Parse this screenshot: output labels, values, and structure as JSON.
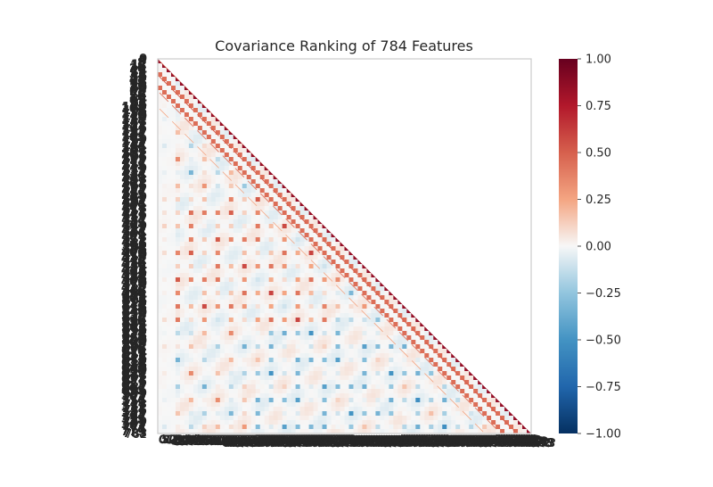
{
  "chart_data": {
    "type": "heatmap",
    "title": "Covariance Ranking of 784 Features",
    "n_features": 784,
    "matrix_shape": "lower-triangular",
    "colormap": "RdBu_r",
    "value_range": [
      -1.0,
      1.0
    ],
    "colorbar": {
      "placement": "right",
      "ticks": [
        "1.00",
        "0.75",
        "0.50",
        "0.25",
        "0.00",
        "−0.25",
        "−0.50",
        "−0.75",
        "−1.00"
      ],
      "tick_values": [
        1.0,
        0.75,
        0.5,
        0.25,
        0.0,
        -0.25,
        -0.5,
        -0.75,
        -1.0
      ]
    },
    "y_last_tick_label": "782",
    "axis_tick_labels_note_overlapping": true,
    "colors": {
      "max": "#67001f",
      "high": "#b2182b",
      "mid_high": "#f4a582",
      "zero": "#f7f7f7",
      "mid_low": "#92c5de",
      "low": "#2166ac",
      "min": "#053061",
      "axis": "#cccccc",
      "text": "#262626"
    },
    "grid": false
  }
}
